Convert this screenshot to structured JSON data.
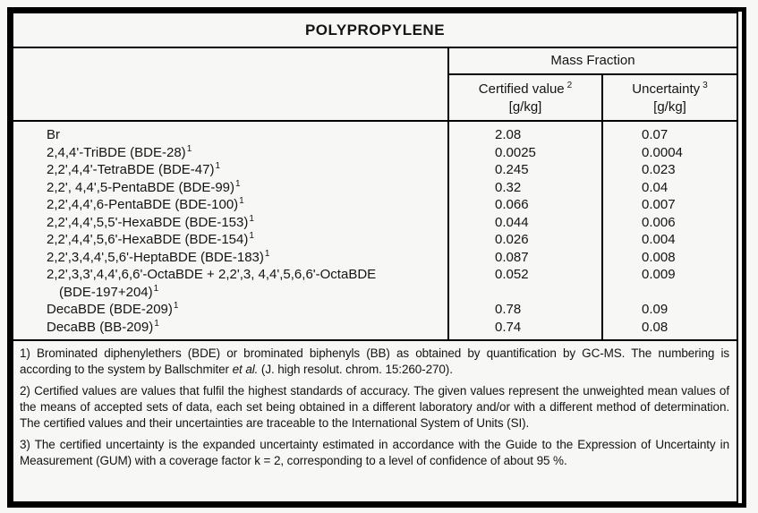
{
  "title": "POLYPROPYLENE",
  "colors": {
    "border": "#000000",
    "background": "#f7f7f5",
    "text": "#141414"
  },
  "table": {
    "group_header": "Mass Fraction",
    "columns": [
      {
        "label": "Certified value",
        "sup": "2",
        "unit": "[g/kg]"
      },
      {
        "label": "Uncertainty",
        "sup": "3",
        "unit": "[g/kg]"
      }
    ],
    "rows": [
      {
        "name": "Br",
        "sup": "",
        "certified": "2.08",
        "uncertainty": "0.07"
      },
      {
        "name": "2,4,4'-TriBDE (BDE-28)",
        "sup": "1",
        "certified": "0.0025",
        "uncertainty": "0.0004"
      },
      {
        "name": "2,2',4,4'-TetraBDE (BDE-47)",
        "sup": "1",
        "certified": "0.245",
        "uncertainty": "0.023"
      },
      {
        "name": "2,2', 4,4',5-PentaBDE (BDE-99)",
        "sup": "1",
        "certified": "0.32",
        "uncertainty": "0.04"
      },
      {
        "name": "2,2',4,4',6-PentaBDE (BDE-100)",
        "sup": "1",
        "certified": "0.066",
        "uncertainty": "0.007"
      },
      {
        "name": "2,2',4,4',5,5'-HexaBDE (BDE-153)",
        "sup": "1",
        "certified": "0.044",
        "uncertainty": "0.006"
      },
      {
        "name": "2,2',4,4',5,6'-HexaBDE (BDE-154)",
        "sup": "1",
        "certified": "0.026",
        "uncertainty": "0.004"
      },
      {
        "name": "2,2',3,4,4',5,6'-HeptaBDE (BDE-183)",
        "sup": "1",
        "certified": "0.087",
        "uncertainty": "0.008"
      },
      {
        "name": "2,2',3,3',4,4',6,6'-OctaBDE + 2,2',3, 4,4',5,6,6'-OctaBDE",
        "name2": "(BDE-197+204)",
        "sup": "1",
        "certified": "0.052",
        "uncertainty": "0.009"
      },
      {
        "name": "DecaBDE (BDE-209)",
        "sup": "1",
        "certified": "0.78",
        "uncertainty": "0.09"
      },
      {
        "name": "DecaBB (BB-209)",
        "sup": "1",
        "certified": "0.74",
        "uncertainty": "0.08"
      }
    ]
  },
  "footnotes": {
    "fn1_pre": "1) Brominated diphenylethers (BDE) or brominated biphenyls (BB) as obtained by quantification by GC-MS. The numbering is according to the system by Ballschmiter ",
    "fn1_italic": "et al.",
    "fn1_post": " (J. high resolut. chrom. 15:260-270).",
    "fn2": "2) Certified values are values that fulfil the highest standards of accuracy. The given values represent the unweighted mean values of the means of accepted sets of data, each set being obtained in a different laboratory and/or with a different method of determination. The certified values and their uncertainties are traceable to the International System of Units (SI).",
    "fn3": "3) The certified uncertainty is the expanded uncertainty estimated in accordance with the Guide to the Expression of Uncertainty in Measurement (GUM) with a coverage factor k = 2, corresponding to a level of confidence of about 95 %."
  }
}
